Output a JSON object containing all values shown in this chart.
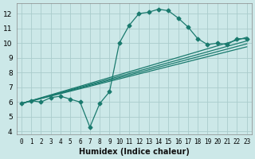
{
  "xlabel": "Humidex (Indice chaleur)",
  "background_color": "#cce8e8",
  "grid_color": "#aacccc",
  "line_color": "#1a7a6e",
  "xlim": [
    -0.5,
    23.5
  ],
  "ylim": [
    3.8,
    12.7
  ],
  "xticks": [
    0,
    1,
    2,
    3,
    4,
    5,
    6,
    7,
    8,
    9,
    10,
    11,
    12,
    13,
    14,
    15,
    16,
    17,
    18,
    19,
    20,
    21,
    22,
    23
  ],
  "yticks": [
    4,
    5,
    6,
    7,
    8,
    9,
    10,
    11,
    12
  ],
  "main_series": {
    "x": [
      0,
      1,
      2,
      3,
      4,
      5,
      6,
      7,
      8,
      9,
      10,
      11,
      12,
      13,
      14,
      15,
      16,
      17,
      18,
      19,
      20,
      21,
      22,
      23
    ],
    "y": [
      5.9,
      6.1,
      6.0,
      6.3,
      6.4,
      6.2,
      6.0,
      4.3,
      5.9,
      6.7,
      10.0,
      11.2,
      12.0,
      12.1,
      12.3,
      12.2,
      11.7,
      11.1,
      10.3,
      9.9,
      10.0,
      9.9,
      10.3,
      10.3
    ]
  },
  "trend_lines": [
    {
      "x0": 0,
      "y0": 5.9,
      "x1": 23,
      "y1": 10.4
    },
    {
      "x0": 0,
      "y0": 5.9,
      "x1": 23,
      "y1": 10.15
    },
    {
      "x0": 0,
      "y0": 5.9,
      "x1": 23,
      "y1": 9.95
    },
    {
      "x0": 0,
      "y0": 5.9,
      "x1": 23,
      "y1": 9.75
    }
  ],
  "marker": "D",
  "markersize": 2.5,
  "linewidth": 0.9,
  "tick_fontsize_x": 5.5,
  "tick_fontsize_y": 6.5,
  "xlabel_fontsize": 7
}
